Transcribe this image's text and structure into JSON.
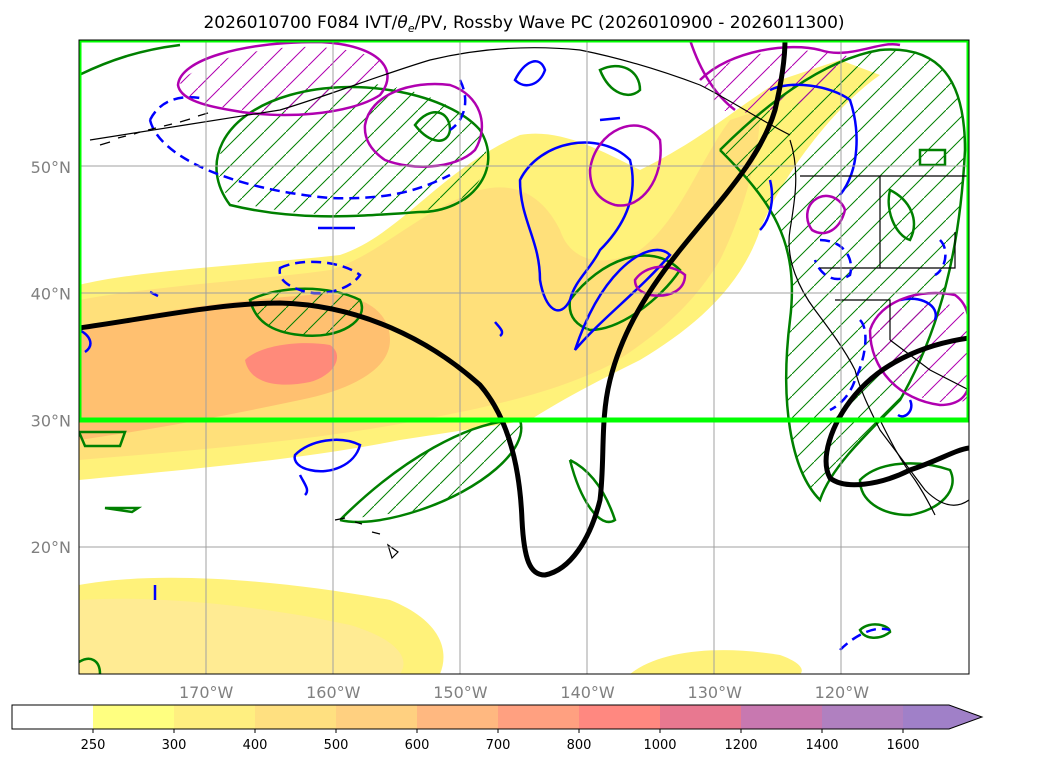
{
  "title": {
    "prefix": "2026010700 F084 IVT/",
    "theta": "θ",
    "subscript": "e",
    "suffix": "/PV, Rossby Wave PC (2026010900 - 2026011300)"
  },
  "map": {
    "lon_range": [
      -180,
      -110
    ],
    "lat_range": [
      10,
      60
    ],
    "lon_ticks": [
      {
        "value": -170,
        "label": "170°W"
      },
      {
        "value": -160,
        "label": "160°W"
      },
      {
        "value": -150,
        "label": "150°W"
      },
      {
        "value": -140,
        "label": "140°W"
      },
      {
        "value": -130,
        "label": "130°W"
      },
      {
        "value": -120,
        "label": "120°W"
      }
    ],
    "lat_ticks": [
      {
        "value": 50,
        "label": "50°N"
      },
      {
        "value": 40,
        "label": "40°N"
      },
      {
        "value": 30,
        "label": "30°N"
      },
      {
        "value": 20,
        "label": "20°N"
      }
    ],
    "gridlines": true,
    "highlight_box": {
      "lon": [
        -180,
        -110
      ],
      "lat": [
        30,
        60
      ],
      "color": "#00ff00"
    }
  },
  "colorbar": {
    "levels": [
      "250",
      "300",
      "400",
      "500",
      "600",
      "700",
      "800",
      "1000",
      "1200",
      "1400",
      "1600"
    ],
    "colors": [
      "#ffffff",
      "#ffff80",
      "#ffef80",
      "#ffe080",
      "#ffd080",
      "#ffb880",
      "#ffa080",
      "#ff8880",
      "#e87890",
      "#c878b0",
      "#b080c0",
      "#a080c8"
    ],
    "extend": "max"
  },
  "colors": {
    "ivt_light": "#fff27a",
    "ivt_mid": "#ffd47a",
    "ivt_orange": "#ffb070",
    "ivt_red": "#ff8a7a",
    "pv_contour": "#0000ff",
    "theta_contour": "#008000",
    "pv_high": "#b000b0",
    "rossby_wave": "#000000",
    "coast": "#000000"
  }
}
